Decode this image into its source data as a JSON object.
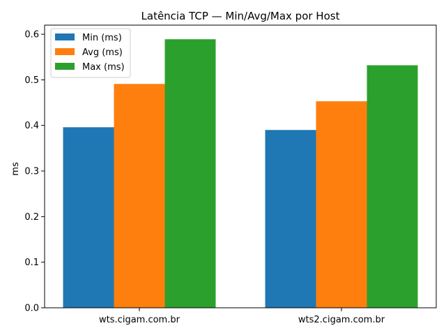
{
  "chart_data": {
    "type": "bar",
    "title": "Latência TCP — Min/Avg/Max por Host",
    "xlabel": "",
    "ylabel": "ms",
    "categories": [
      "wts.cigam.com.br",
      "wts2.cigam.com.br"
    ],
    "series": [
      {
        "name": "Min (ms)",
        "color": "#1f77b4",
        "values": [
          0.396,
          0.39
        ]
      },
      {
        "name": "Avg (ms)",
        "color": "#ff7f0e",
        "values": [
          0.491,
          0.453
        ]
      },
      {
        "name": "Max (ms)",
        "color": "#2ca02c",
        "values": [
          0.589,
          0.532
        ]
      }
    ],
    "ylim": [
      0,
      0.62
    ],
    "yticks": [
      "0.0",
      "0.1",
      "0.2",
      "0.3",
      "0.4",
      "0.5",
      "0.6"
    ],
    "grid": false,
    "legend_position": "top-left"
  }
}
